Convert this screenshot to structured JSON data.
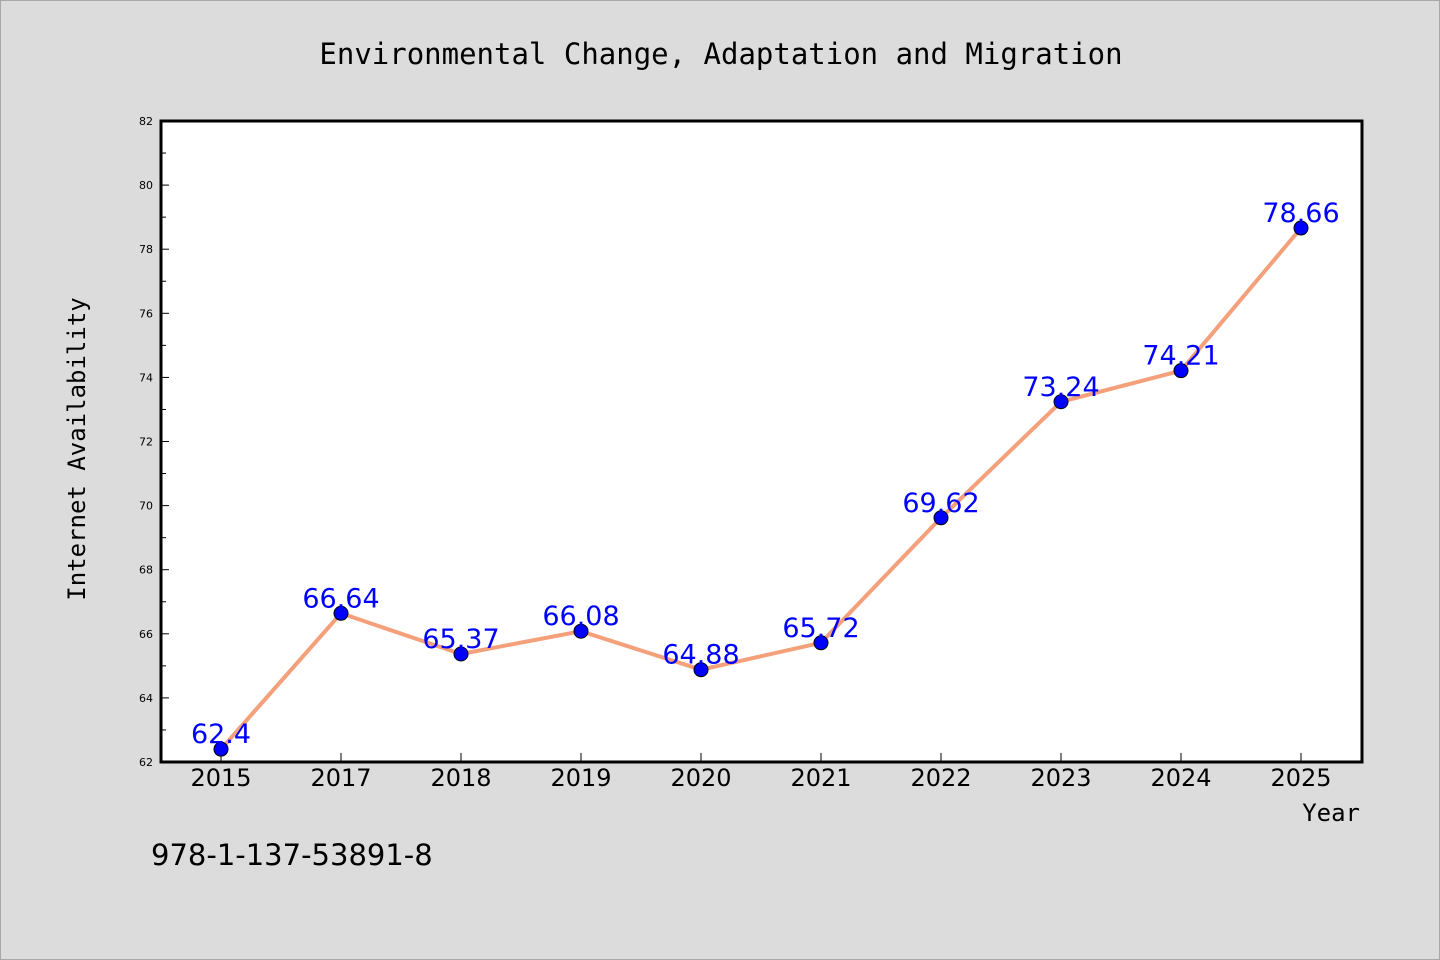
{
  "chart_data": {
    "type": "line",
    "title": "Environmental Change, Adaptation and Migration",
    "xlabel": "Year",
    "ylabel": "Internet Availability",
    "categories": [
      "2015",
      "2017",
      "2018",
      "2019",
      "2020",
      "2021",
      "2022",
      "2023",
      "2024",
      "2025"
    ],
    "series": [
      {
        "values": [
          62.4,
          66.64,
          65.37,
          66.08,
          64.88,
          65.72,
          69.62,
          73.24,
          74.21,
          78.66
        ],
        "data_labels": [
          "62.4",
          "66.64",
          "65.37",
          "66.08",
          "64.88",
          "65.72",
          "69.62",
          "73.24",
          "74.21",
          "78.66"
        ]
      }
    ],
    "ylim": [
      62,
      82
    ],
    "yticks": [
      62,
      64,
      66,
      68,
      70,
      72,
      74,
      76,
      78,
      80,
      82
    ],
    "grid": false,
    "legend": "none",
    "colors": {
      "background": "#dcdcdc",
      "plot_background": "#ffffff",
      "line": "#f4a07a",
      "marker": "#0000ff",
      "data_label": "#0000ff",
      "text": "#000000"
    }
  },
  "footer": {
    "isbn": "978-1-137-53891-8"
  }
}
